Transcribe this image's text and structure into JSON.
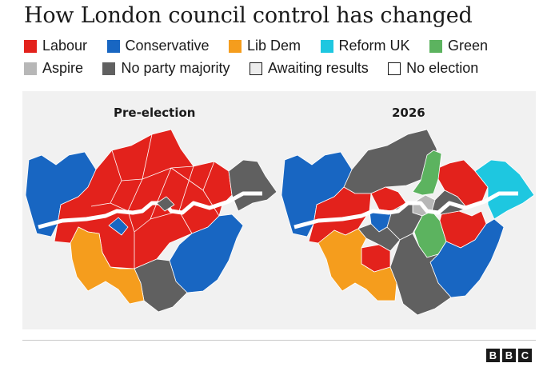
{
  "title": "How London council control has changed",
  "legend": [
    {
      "label": "Labour",
      "color": "#e3221c"
    },
    {
      "label": "Conservative",
      "color": "#1866c2"
    },
    {
      "label": "Lib Dem",
      "color": "#f59d1d"
    },
    {
      "label": "Reform UK",
      "color": "#1ec7e0"
    },
    {
      "label": "Green",
      "color": "#5cb35f"
    },
    {
      "label": "Aspire",
      "color": "#b7b7b7"
    },
    {
      "label": "No party majority",
      "color": "#606060"
    },
    {
      "label": "Awaiting results",
      "color": "#ececec",
      "outline": true
    },
    {
      "label": "No election",
      "color": "#ffffff",
      "outline": true
    }
  ],
  "maps": [
    {
      "label": "Pre-election"
    },
    {
      "label": "2026"
    }
  ],
  "logo": [
    "B",
    "B",
    "C"
  ],
  "colors": {
    "river": "#ffffff",
    "panel": "#f1f1f1",
    "borough_border": "#ffffff"
  }
}
